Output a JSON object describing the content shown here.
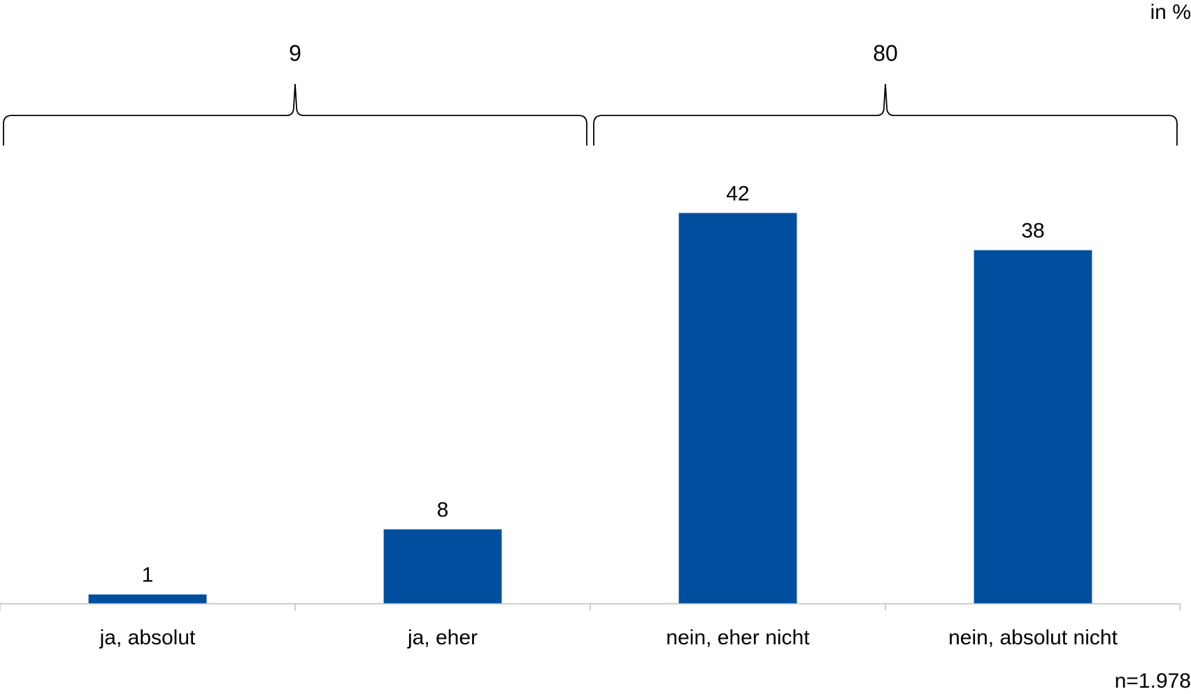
{
  "unit_label": "in %",
  "n_label": "n=1.978",
  "colors": {
    "bar": "#004F9F",
    "axis": "#BFBFBF",
    "bracket": "#000000"
  },
  "chart_data": {
    "type": "bar",
    "title": "",
    "xlabel": "",
    "ylabel": "",
    "categories": [
      "ja, absolut",
      "ja, eher",
      "nein, eher nicht",
      "nein, absolut nicht"
    ],
    "values": [
      1,
      8,
      42,
      38
    ],
    "ylim": [
      0,
      45
    ],
    "grid": false,
    "data_labels": [
      "1",
      "8",
      "42",
      "38"
    ],
    "group_totals": [
      {
        "label": "9",
        "value": 9,
        "categories": [
          "ja, absolut",
          "ja, eher"
        ]
      },
      {
        "label": "80",
        "value": 80,
        "categories": [
          "nein, eher nicht",
          "nein, absolut nicht"
        ]
      }
    ]
  }
}
